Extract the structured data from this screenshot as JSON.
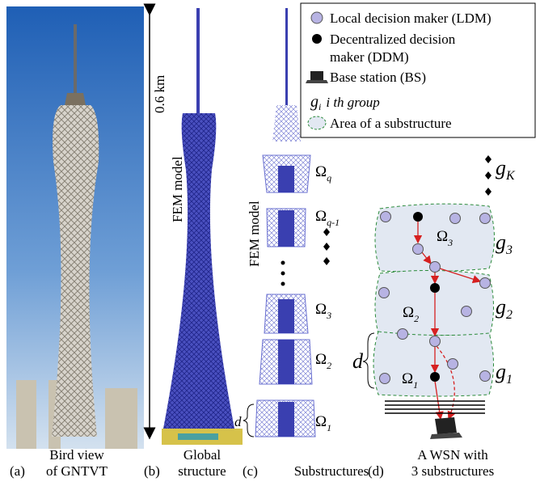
{
  "height_label": "0.6 km",
  "fem_labels": [
    "FEM model",
    "FEM model"
  ],
  "substructures": [
    {
      "symbol": "Ω",
      "sub": "q"
    },
    {
      "symbol": "Ω",
      "sub": "q-1"
    },
    {
      "symbol": "Ω",
      "sub": "3"
    },
    {
      "symbol": "Ω",
      "sub": "2"
    },
    {
      "symbol": "Ω",
      "sub": "1"
    }
  ],
  "d_label": "d",
  "legend": {
    "ldm": "Local decision maker (LDM)",
    "ddm": [
      "Decentralized decision",
      "maker (DDM)"
    ],
    "bs": "Base station (BS)",
    "group": {
      "symbol": "g",
      "sub": "i",
      "text": "i th group"
    },
    "area": "Area of a substructure"
  },
  "wsn": {
    "groups": [
      {
        "symbol": "g",
        "sub": "K"
      },
      {
        "symbol": "g",
        "sub": "3"
      },
      {
        "symbol": "g",
        "sub": "2"
      },
      {
        "symbol": "g",
        "sub": "1"
      }
    ],
    "areas": [
      {
        "symbol": "Ω",
        "sub": "3"
      },
      {
        "symbol": "Ω",
        "sub": "2"
      },
      {
        "symbol": "Ω",
        "sub": "1"
      }
    ],
    "d_label": "d"
  },
  "captions": [
    {
      "label": "(a)",
      "lines": [
        "Bird view",
        "of GNTVT"
      ]
    },
    {
      "label": "(b)",
      "lines": [
        "Global",
        "structure"
      ]
    },
    {
      "label": "(c)",
      "lines": [
        "Substructures"
      ]
    },
    {
      "label": "(d)",
      "lines": [
        "A WSN with",
        "3 substructures"
      ]
    }
  ]
}
